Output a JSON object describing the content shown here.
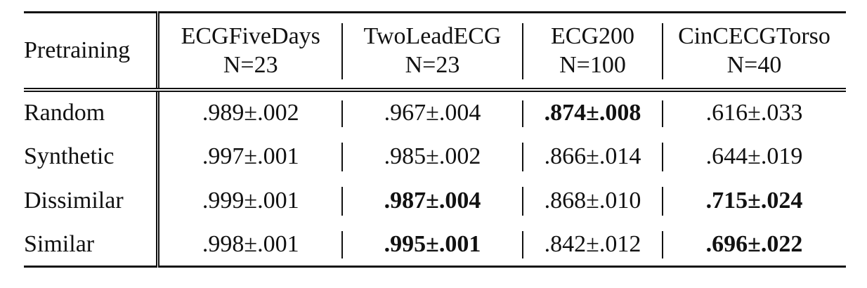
{
  "table": {
    "header_first": "Pretraining",
    "columns": [
      {
        "name": "ECGFiveDays",
        "n": "N=23"
      },
      {
        "name": "TwoLeadECG",
        "n": "N=23"
      },
      {
        "name": "ECG200",
        "n": "N=100"
      },
      {
        "name": "CinCECGTorso",
        "n": "N=40"
      }
    ],
    "rows": [
      {
        "label": "Random",
        "cells": [
          ".989±.002",
          ".967±.004",
          ".874±.008",
          ".616±.033"
        ],
        "bold": [
          false,
          false,
          true,
          false
        ]
      },
      {
        "label": "Synthetic",
        "cells": [
          ".997±.001",
          ".985±.002",
          ".866±.014",
          ".644±.019"
        ],
        "bold": [
          false,
          false,
          false,
          false
        ]
      },
      {
        "label": "Dissimilar",
        "cells": [
          ".999±.001",
          ".987±.004",
          ".868±.010",
          ".715±.024"
        ],
        "bold": [
          false,
          true,
          false,
          true
        ]
      },
      {
        "label": "Similar",
        "cells": [
          ".998±.001",
          ".995±.001",
          ".842±.012",
          ".696±.022"
        ],
        "bold": [
          false,
          true,
          false,
          true
        ]
      }
    ]
  }
}
